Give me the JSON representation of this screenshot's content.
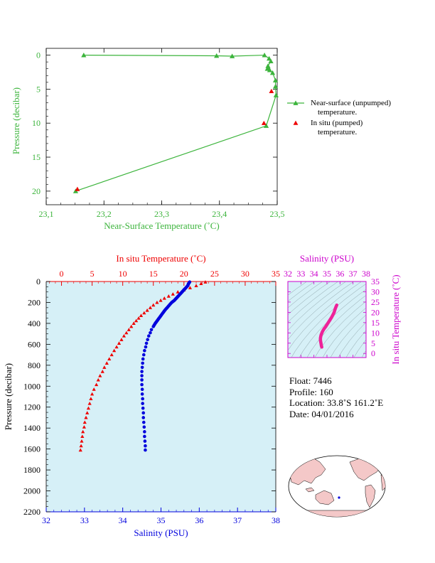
{
  "chart_data": [
    {
      "id": "near_surface",
      "type": "line",
      "xlabel": "Near-Surface Temperature (˚C)",
      "ylabel": "Pressure (decibar)",
      "xlim": [
        23.1,
        23.5
      ],
      "ylim": [
        22,
        -1
      ],
      "xticks": [
        "23,1",
        "23,2",
        "23,3",
        "23,4",
        "23,5"
      ],
      "yticks": [
        "0",
        "5",
        "10",
        "15",
        "20"
      ],
      "series": [
        {
          "name": "Near-surface (unpumped) temperature.",
          "marker": "triangle",
          "color": "#3cb43c",
          "points": [
            [
              23.165,
              0.0
            ],
            [
              23.395,
              0.1
            ],
            [
              23.422,
              0.15
            ],
            [
              23.478,
              0.0
            ],
            [
              23.486,
              0.5
            ],
            [
              23.489,
              0.9
            ],
            [
              23.484,
              1.6
            ],
            [
              23.487,
              2.2
            ],
            [
              23.483,
              2.0
            ],
            [
              23.492,
              2.6
            ],
            [
              23.497,
              3.7
            ],
            [
              23.497,
              4.6
            ],
            [
              23.498,
              5.9
            ],
            [
              23.481,
              10.4
            ],
            [
              23.151,
              20.0
            ]
          ]
        },
        {
          "name": "In situ (pumped) temperature.",
          "marker": "triangle",
          "color": "#ee0000",
          "line": false,
          "points": [
            [
              23.49,
              5.3
            ],
            [
              23.477,
              10.0
            ],
            [
              23.154,
              19.7
            ]
          ]
        }
      ]
    },
    {
      "id": "profile",
      "type": "scatter",
      "xlabel": "Salinity (PSU)",
      "x2label": "In situ Temperature (˚C)",
      "ylabel": "Pressure (decibar)",
      "xlim": [
        32,
        38
      ],
      "x2lim": [
        -2.5,
        35
      ],
      "ylim": [
        2200,
        0
      ],
      "xticks": [
        "32",
        "33",
        "34",
        "35",
        "36",
        "37",
        "38"
      ],
      "x2ticks": [
        "0",
        "5",
        "10",
        "15",
        "20",
        "25",
        "30",
        "35"
      ],
      "yticks": [
        "0",
        "200",
        "400",
        "600",
        "800",
        "1000",
        "1200",
        "1400",
        "1600",
        "1800",
        "2000",
        "2200"
      ],
      "temperature": {
        "color": "#ee0000",
        "points": [
          [
            23.5,
            5
          ],
          [
            22.8,
            20
          ],
          [
            22.0,
            40
          ],
          [
            21.0,
            60
          ],
          [
            20.0,
            80
          ],
          [
            19.0,
            100
          ],
          [
            18.2,
            120
          ],
          [
            17.5,
            140
          ],
          [
            16.8,
            160
          ],
          [
            16.2,
            180
          ],
          [
            15.6,
            200
          ],
          [
            15.0,
            225
          ],
          [
            14.5,
            250
          ],
          [
            14.0,
            275
          ],
          [
            13.5,
            300
          ],
          [
            13.0,
            325
          ],
          [
            12.6,
            350
          ],
          [
            12.2,
            375
          ],
          [
            11.8,
            400
          ],
          [
            11.4,
            430
          ],
          [
            11.0,
            460
          ],
          [
            10.6,
            490
          ],
          [
            10.2,
            520
          ],
          [
            9.8,
            555
          ],
          [
            9.4,
            590
          ],
          [
            9.0,
            625
          ],
          [
            8.6,
            660
          ],
          [
            8.2,
            700
          ],
          [
            7.8,
            740
          ],
          [
            7.4,
            780
          ],
          [
            7.0,
            820
          ],
          [
            6.7,
            860
          ],
          [
            6.3,
            900
          ],
          [
            6.0,
            940
          ],
          [
            5.7,
            985
          ],
          [
            5.3,
            1030
          ],
          [
            5.0,
            1075
          ],
          [
            4.8,
            1120
          ],
          [
            4.6,
            1165
          ],
          [
            4.4,
            1210
          ],
          [
            4.2,
            1255
          ],
          [
            4.0,
            1300
          ],
          [
            3.8,
            1345
          ],
          [
            3.7,
            1390
          ],
          [
            3.5,
            1435
          ],
          [
            3.4,
            1480
          ],
          [
            3.3,
            1525
          ],
          [
            3.2,
            1570
          ],
          [
            3.1,
            1610
          ]
        ]
      },
      "salinity": {
        "color": "#0000dd",
        "points": [
          [
            35.75,
            5
          ],
          [
            35.72,
            20
          ],
          [
            35.7,
            40
          ],
          [
            35.65,
            60
          ],
          [
            35.6,
            80
          ],
          [
            35.55,
            100
          ],
          [
            35.5,
            120
          ],
          [
            35.45,
            140
          ],
          [
            35.4,
            160
          ],
          [
            35.35,
            180
          ],
          [
            35.28,
            200
          ],
          [
            35.22,
            225
          ],
          [
            35.16,
            250
          ],
          [
            35.1,
            275
          ],
          [
            35.05,
            300
          ],
          [
            35.0,
            325
          ],
          [
            34.95,
            350
          ],
          [
            34.9,
            375
          ],
          [
            34.85,
            400
          ],
          [
            34.8,
            430
          ],
          [
            34.75,
            460
          ],
          [
            34.72,
            490
          ],
          [
            34.68,
            520
          ],
          [
            34.65,
            555
          ],
          [
            34.62,
            590
          ],
          [
            34.6,
            625
          ],
          [
            34.57,
            660
          ],
          [
            34.55,
            700
          ],
          [
            34.53,
            740
          ],
          [
            34.52,
            780
          ],
          [
            34.51,
            820
          ],
          [
            34.5,
            860
          ],
          [
            34.5,
            900
          ],
          [
            34.5,
            940
          ],
          [
            34.5,
            985
          ],
          [
            34.51,
            1030
          ],
          [
            34.51,
            1075
          ],
          [
            34.52,
            1120
          ],
          [
            34.52,
            1165
          ],
          [
            34.53,
            1210
          ],
          [
            34.54,
            1255
          ],
          [
            34.54,
            1300
          ],
          [
            34.55,
            1345
          ],
          [
            34.56,
            1390
          ],
          [
            34.57,
            1435
          ],
          [
            34.57,
            1480
          ],
          [
            34.58,
            1525
          ],
          [
            34.59,
            1570
          ],
          [
            34.59,
            1610
          ]
        ]
      }
    },
    {
      "id": "ts_diagram",
      "type": "scatter",
      "xlabel": "Salinity (PSU)",
      "ylabel": "In situ Temperature (˚C)",
      "xlim": [
        32,
        38
      ],
      "ylim": [
        -2,
        35
      ],
      "xticks": [
        "32",
        "33",
        "34",
        "35",
        "36",
        "37",
        "38"
      ],
      "yticks": [
        "0",
        "5",
        "10",
        "15",
        "20",
        "25",
        "30",
        "35"
      ],
      "color": "#ee2299",
      "points": [
        [
          34.6,
          3.1
        ],
        [
          34.57,
          3.8
        ],
        [
          34.55,
          4.6
        ],
        [
          34.53,
          5.3
        ],
        [
          34.51,
          6.0
        ],
        [
          34.5,
          6.7
        ],
        [
          34.5,
          7.4
        ],
        [
          34.52,
          8.2
        ],
        [
          34.55,
          9.0
        ],
        [
          34.6,
          9.8
        ],
        [
          34.65,
          10.6
        ],
        [
          34.72,
          11.4
        ],
        [
          34.8,
          12.2
        ],
        [
          34.9,
          13.0
        ],
        [
          35.0,
          14.0
        ],
        [
          35.1,
          15.0
        ],
        [
          35.22,
          16.2
        ],
        [
          35.35,
          17.5
        ],
        [
          35.45,
          18.7
        ],
        [
          35.55,
          20.0
        ],
        [
          35.6,
          21.0
        ],
        [
          35.65,
          22.0
        ],
        [
          35.7,
          22.8
        ],
        [
          35.75,
          23.5
        ]
      ]
    }
  ],
  "float_info": {
    "float": "Float:  7446",
    "profile": "Profile:  160",
    "location": "Location:  33.8˚S  161.2˚E",
    "date": "Date:  04/01/2016"
  },
  "colors": {
    "near_surface_axis": "#3cb43c",
    "profile_background": "#d6f0f7",
    "salinity_axis": "#0000dd",
    "temperature_axis": "#ee0000",
    "ts_axis": "#cc00cc",
    "map_land": "#f4c8c8"
  },
  "map": {
    "icon": "world-map-icon",
    "marker": "float-location-marker"
  }
}
